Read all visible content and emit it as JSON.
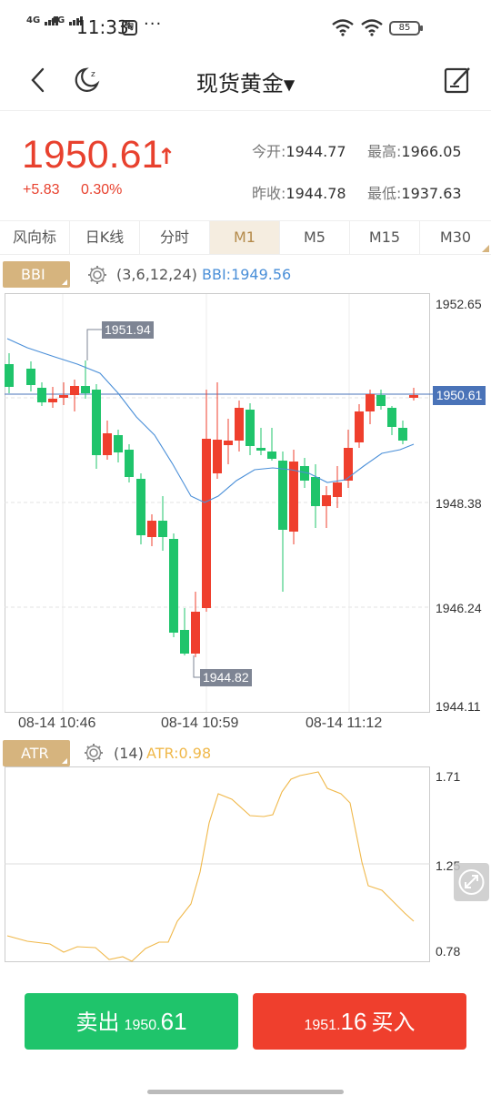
{
  "status_bar": {
    "signal1": "4G",
    "signal2": "4G",
    "time": "11:33",
    "app_badge": "淘",
    "more": "···",
    "battery": "85"
  },
  "nav": {
    "title": "现货黄金",
    "back_icon": "chevron-left-icon",
    "night_icon": "moon-icon",
    "edit_icon": "note-edit-icon"
  },
  "quote": {
    "price": "1950.61",
    "direction": "↑",
    "change": "+5.83",
    "change_pct": "0.30%",
    "open_label": "今开:",
    "open": "1944.77",
    "high_label": "最高:",
    "high": "1966.05",
    "prev_close_label": "昨收:",
    "prev_close": "1944.78",
    "low_label": "最低:",
    "low": "1937.63"
  },
  "tabs": [
    "风向标",
    "日K线",
    "分时",
    "M1",
    "M5",
    "M15",
    "M30"
  ],
  "active_tab": "M1",
  "main_indicator": {
    "name": "BBI",
    "params": "(3,6,12,24)",
    "value_label": "BBI:1949.56",
    "color": "#4a8fd8"
  },
  "main_chart": {
    "y_ticks": [
      "1952.65",
      "1948.38",
      "1946.24",
      "1944.11"
    ],
    "current_price_tag": "1950.61",
    "max_tag": "1951.94",
    "min_tag": "1944.82",
    "x_labels": [
      "08-14 10:46",
      "08-14 10:59",
      "08-14 11:12"
    ],
    "up_color": "#ef3f2d",
    "down_color": "#1fc46b"
  },
  "sub_indicator": {
    "name": "ATR",
    "params": "(14)",
    "value_label": "ATR:0.98",
    "color": "#f0b84a",
    "y_ticks": [
      "1.71",
      "1.25",
      "0.78"
    ]
  },
  "actions": {
    "sell_label": "卖出",
    "sell_price_int": "1950.",
    "sell_price_dec": "61",
    "buy_price_int": "1951.",
    "buy_price_dec": "16",
    "buy_label": "买入"
  }
}
